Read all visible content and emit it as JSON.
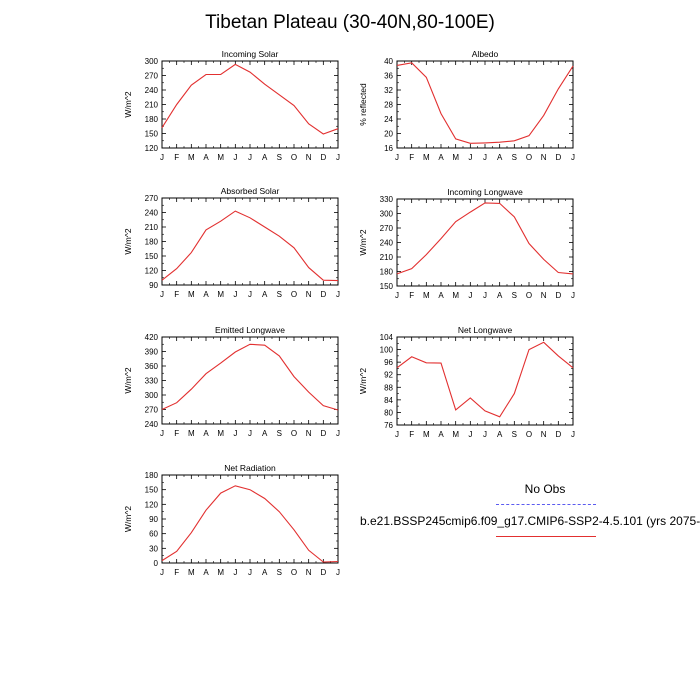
{
  "title": "Tibetan Plateau (30-40N,80-100E)",
  "months": [
    "J",
    "F",
    "M",
    "A",
    "M",
    "J",
    "J",
    "A",
    "S",
    "O",
    "N",
    "D",
    "J"
  ],
  "line_color": "#e23030",
  "legend": {
    "obs_label": "No Obs",
    "obs_color": "#5b5bf0",
    "model_label": "b.e21.BSSP245cmip6.f09_g17.CMIP6-SSP2-4.5.101 (yrs 2075-",
    "model_color": "#e23030"
  },
  "chart_data": [
    {
      "type": "line",
      "title": "Incoming Solar",
      "ylabel": "W/m^2",
      "ylim": [
        120,
        300
      ],
      "yticks": [
        "120",
        "150",
        "180",
        "210",
        "240",
        "270",
        "300"
      ],
      "values": [
        162,
        210,
        250,
        272,
        272,
        293,
        277,
        252,
        230,
        208,
        170,
        149,
        160
      ]
    },
    {
      "type": "line",
      "title": "Albedo",
      "ylabel": "% reflected",
      "ylim": [
        16,
        40
      ],
      "yticks": [
        "16",
        "20",
        "24",
        "28",
        "32",
        "36",
        "40"
      ],
      "values": [
        38.8,
        39.5,
        35.5,
        25.5,
        18.5,
        17.3,
        17.4,
        17.6,
        18.0,
        19.4,
        25.0,
        32.3,
        38.6
      ]
    },
    {
      "type": "line",
      "title": "Absorbed Solar",
      "ylabel": "W/m^2",
      "ylim": [
        90,
        270
      ],
      "yticks": [
        "90",
        "120",
        "150",
        "180",
        "210",
        "240",
        "270"
      ],
      "values": [
        100,
        124,
        157,
        204,
        222,
        243,
        229,
        210,
        191,
        167,
        126,
        100,
        99
      ]
    },
    {
      "type": "line",
      "title": "Incoming Longwave",
      "ylabel": "W/m^2",
      "ylim": [
        150,
        330
      ],
      "yticks": [
        "150",
        "180",
        "210",
        "240",
        "270",
        "300",
        "330"
      ],
      "values": [
        175,
        186,
        215,
        248,
        283,
        303,
        322,
        321,
        293,
        238,
        205,
        178,
        175
      ]
    },
    {
      "type": "line",
      "title": "Emitted Longwave",
      "ylabel": "W/m^2",
      "ylim": [
        240,
        420
      ],
      "yticks": [
        "240",
        "270",
        "300",
        "330",
        "360",
        "390",
        "420"
      ],
      "values": [
        270,
        284,
        312,
        344,
        366,
        389,
        405,
        403,
        381,
        338,
        306,
        278,
        269
      ]
    },
    {
      "type": "line",
      "title": "Net Longwave",
      "ylabel": "W/m^2",
      "ylim": [
        76,
        104
      ],
      "yticks": [
        "76",
        "80",
        "84",
        "88",
        "92",
        "96",
        "100",
        "104"
      ],
      "values": [
        94.2,
        97.7,
        95.8,
        95.7,
        80.8,
        84.6,
        80.5,
        78.6,
        86.0,
        100.0,
        102.3,
        98.0,
        94.2
      ]
    },
    {
      "type": "line",
      "title": "Net Radiation",
      "ylabel": "W/m^2",
      "ylim": [
        0,
        180
      ],
      "yticks": [
        "0",
        "30",
        "60",
        "90",
        "120",
        "150",
        "180"
      ],
      "values": [
        5,
        24,
        62,
        108,
        143,
        158,
        150,
        132,
        105,
        68,
        26,
        2,
        3
      ]
    }
  ]
}
